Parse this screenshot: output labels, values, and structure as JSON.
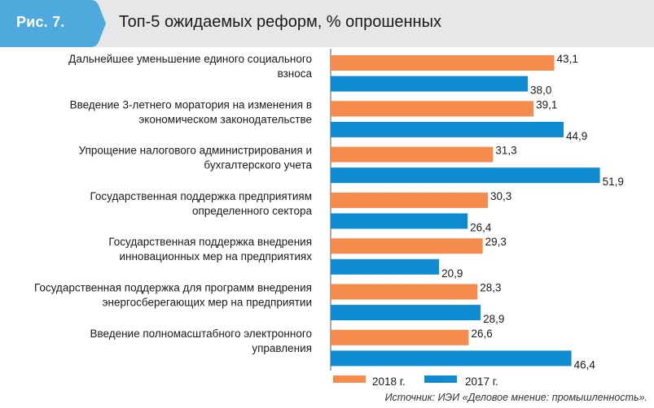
{
  "header": {
    "figure_label": "Рис. 7.",
    "title": "Топ-5 ожидаемых реформ, % опрошенных"
  },
  "colors": {
    "s2018": "#f58b4c",
    "s2017": "#0f8bd2",
    "badge": "#4ea9dc",
    "header_bg": "#e6e7e8"
  },
  "chart_data": {
    "type": "bar",
    "orientation": "horizontal",
    "title": "Топ-5 ожидаемых реформ, % опрошенных",
    "categories": [
      [
        "Дальнейшее уменьшение единого социального",
        "взноса"
      ],
      [
        "Введение 3-летнего моратория на изменения в",
        "экономическом законодательстве"
      ],
      [
        "Упрощение налогового администрирования и",
        "бухгалтерского учета"
      ],
      [
        "Государственная поддержка предприятиям",
        "определенного сектора"
      ],
      [
        "Государственная поддержка внедрения",
        "инновационных мер на предприятиях"
      ],
      [
        "Государственная поддержка для программ внедрения",
        "энергосберегающих мер на предприятии"
      ],
      [
        "Введение полномасштабного электронного",
        "управления"
      ]
    ],
    "series": [
      {
        "name": "2018 г.",
        "color": "#f58b4c",
        "values": [
          43.1,
          39.1,
          31.3,
          30.3,
          29.3,
          28.3,
          26.6
        ]
      },
      {
        "name": "2017 г.",
        "color": "#0f8bd2",
        "values": [
          38.0,
          44.9,
          51.9,
          26.4,
          20.9,
          28.9,
          46.4
        ]
      }
    ],
    "value_labels": [
      [
        "43,1",
        "39,1",
        "31,3",
        "30,3",
        "29,3",
        "28,3",
        "26,6"
      ],
      [
        "38,0",
        "44,9",
        "51,9",
        "26,4",
        "20,9",
        "28,9",
        "46,4"
      ]
    ],
    "xlim": [
      0,
      60
    ],
    "grid": false,
    "legend_position": "bottom"
  },
  "source": "Источник: ИЭИ «Деловое мнение: промышленность»."
}
